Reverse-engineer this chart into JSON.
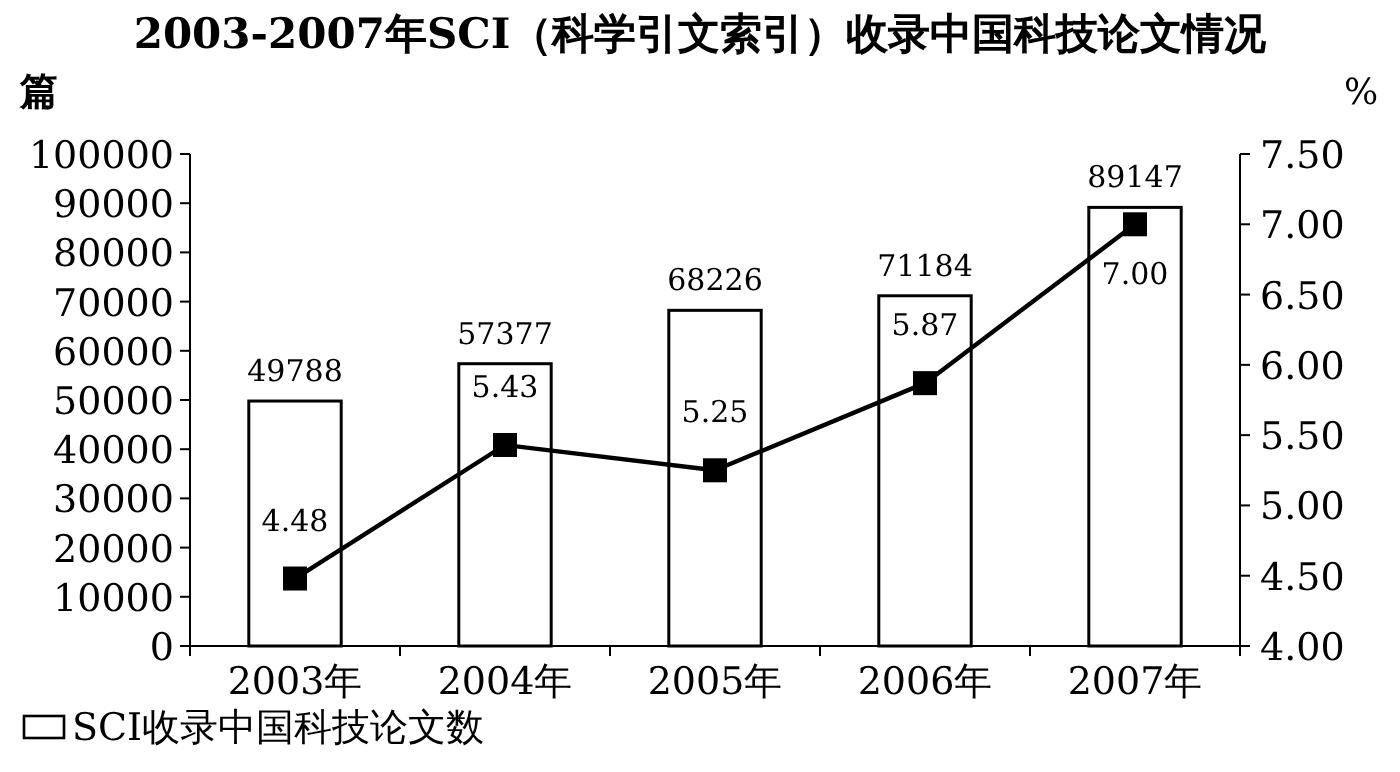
{
  "chart_data": {
    "type": "bar",
    "title": "2003-2007年SCI（科学引文索引）收录中国科技论文情况",
    "ylabel": "篇",
    "y2label": "%",
    "categories": [
      "2003年",
      "2004年",
      "2005年",
      "2006年",
      "2007年"
    ],
    "series": [
      {
        "name": "SCI收录中国科技论文数",
        "color": "#ffffff",
        "values": [
          49788,
          57377,
          68226,
          71184,
          89147
        ],
        "data_labels": true
      },
      {
        "type": "line",
        "axis": "y2",
        "color": "#000000",
        "marker": "square",
        "line_style": "solid",
        "values": [
          4.48,
          5.43,
          5.25,
          5.87,
          7.0
        ],
        "value_labels": [
          "4.48",
          "5.43",
          "5.25",
          "5.87",
          "7.00"
        ]
      }
    ],
    "ylim": [
      0,
      100000
    ],
    "yticks": [
      0,
      10000,
      20000,
      30000,
      40000,
      50000,
      60000,
      70000,
      80000,
      90000,
      100000
    ],
    "y2lim": [
      4,
      7.5
    ],
    "y2ticks": [
      {
        "value": 4,
        "label": "4.00"
      },
      {
        "value": 4.5,
        "label": "4.50"
      },
      {
        "value": 5,
        "label": "5.00"
      },
      {
        "value": 5.5,
        "label": "5.50"
      },
      {
        "value": 6,
        "label": "6.00"
      },
      {
        "value": 6.5,
        "label": "6.50"
      },
      {
        "value": 7,
        "label": "7.00"
      },
      {
        "value": 7.5,
        "label": "7.50"
      }
    ],
    "grid": false,
    "legend": "bottom left"
  }
}
